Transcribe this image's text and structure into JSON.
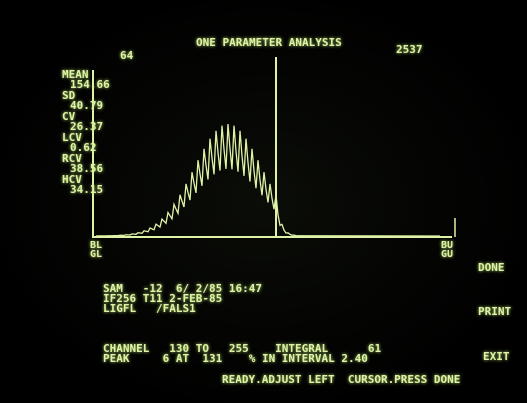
{
  "header": {
    "left_number": "64",
    "title": "ONE PARAMETER ANALYSIS",
    "right_number": "2537"
  },
  "stats": [
    {
      "label": "MEAN",
      "value": "154.66"
    },
    {
      "label": "SD",
      "value": "40.79"
    },
    {
      "label": "CV",
      "value": "26.37"
    },
    {
      "label": "LCV",
      "value": "0.62"
    },
    {
      "label": "RCV",
      "value": "38.56"
    },
    {
      "label": "HCV",
      "value": "34.15"
    }
  ],
  "axis": {
    "left_top": "BL",
    "left_bottom": "GL",
    "right_top": "BU",
    "right_bottom": "GU"
  },
  "menu": [
    "DONE",
    "PRINT",
    "EXIT"
  ],
  "info": [
    "SAM   -12  6/ 2/85 16:47",
    "IF256 T11 2-FEB-85",
    "LIGFL   /FALS1"
  ],
  "results": [
    "CHANNEL   130 TO   255    INTEGRAL      61",
    "PEAK     6 AT  131    % IN INTERVAL 2.40"
  ],
  "status": "READY.ADJUST LEFT  CURSOR.PRESS DONE"
}
